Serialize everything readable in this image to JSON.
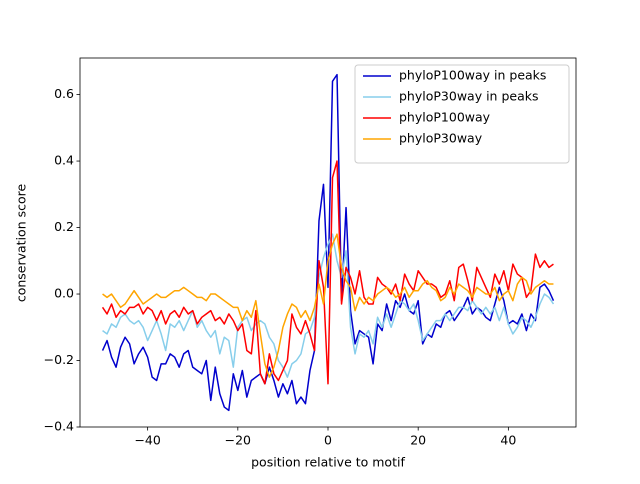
{
  "chart_data": {
    "type": "line",
    "xlabel": "position relative to motif",
    "ylabel": "conservation score",
    "x": [
      -50,
      -49,
      -48,
      -47,
      -46,
      -45,
      -44,
      -43,
      -42,
      -41,
      -40,
      -39,
      -38,
      -37,
      -36,
      -35,
      -34,
      -33,
      -32,
      -31,
      -30,
      -29,
      -28,
      -27,
      -26,
      -25,
      -24,
      -23,
      -22,
      -21,
      -20,
      -19,
      -18,
      -17,
      -16,
      -15,
      -14,
      -13,
      -12,
      -11,
      -10,
      -9,
      -8,
      -7,
      -6,
      -5,
      -4,
      -3,
      -2,
      -1,
      0,
      1,
      2,
      3,
      4,
      5,
      6,
      7,
      8,
      9,
      10,
      11,
      12,
      13,
      14,
      15,
      16,
      17,
      18,
      19,
      20,
      21,
      22,
      23,
      24,
      25,
      26,
      27,
      28,
      29,
      30,
      31,
      32,
      33,
      34,
      35,
      36,
      37,
      38,
      39,
      40,
      41,
      42,
      43,
      44,
      45,
      46,
      47,
      48,
      49,
      50
    ],
    "series": [
      {
        "name": "phyloP100way in peaks",
        "color": "#0000cd",
        "values": [
          -0.17,
          -0.14,
          -0.19,
          -0.22,
          -0.16,
          -0.13,
          -0.15,
          -0.21,
          -0.18,
          -0.16,
          -0.19,
          -0.25,
          -0.26,
          -0.21,
          -0.21,
          -0.18,
          -0.19,
          -0.22,
          -0.18,
          -0.17,
          -0.22,
          -0.23,
          -0.24,
          -0.2,
          -0.32,
          -0.22,
          -0.3,
          -0.34,
          -0.35,
          -0.24,
          -0.29,
          -0.23,
          -0.31,
          -0.26,
          -0.25,
          -0.24,
          -0.27,
          -0.22,
          -0.26,
          -0.31,
          -0.27,
          -0.3,
          -0.26,
          -0.33,
          -0.31,
          -0.33,
          -0.23,
          -0.17,
          0.22,
          0.33,
          0.02,
          0.64,
          0.66,
          -0.02,
          0.26,
          -0.05,
          -0.15,
          -0.11,
          -0.12,
          -0.13,
          -0.21,
          -0.09,
          -0.11,
          -0.03,
          -0.08,
          -0.02,
          -0.04,
          0.0,
          -0.05,
          -0.06,
          -0.02,
          -0.15,
          -0.12,
          -0.13,
          -0.09,
          -0.1,
          -0.06,
          -0.05,
          -0.08,
          -0.06,
          -0.04,
          -0.01,
          -0.06,
          -0.04,
          -0.05,
          -0.07,
          -0.08,
          -0.03,
          0.02,
          -0.02,
          -0.09,
          -0.08,
          -0.09,
          -0.06,
          -0.11,
          -0.06,
          -0.08,
          0.02,
          0.03,
          0.01,
          -0.02
        ]
      },
      {
        "name": "phyloP30way in peaks",
        "color": "#87ceeb",
        "values": [
          -0.11,
          -0.12,
          -0.09,
          -0.1,
          -0.07,
          -0.06,
          -0.08,
          -0.09,
          -0.08,
          -0.1,
          -0.14,
          -0.11,
          -0.08,
          -0.12,
          -0.17,
          -0.09,
          -0.1,
          -0.08,
          -0.11,
          -0.08,
          -0.05,
          -0.1,
          -0.08,
          -0.11,
          -0.13,
          -0.11,
          -0.18,
          -0.13,
          -0.14,
          -0.22,
          -0.1,
          -0.08,
          -0.07,
          -0.11,
          -0.09,
          -0.08,
          -0.09,
          -0.13,
          -0.15,
          -0.2,
          -0.22,
          -0.25,
          -0.21,
          -0.2,
          -0.18,
          -0.12,
          -0.11,
          -0.07,
          0.05,
          0.11,
          0.15,
          0.18,
          0.1,
          0.05,
          0.13,
          -0.1,
          -0.18,
          -0.12,
          -0.13,
          -0.11,
          -0.15,
          -0.07,
          -0.1,
          -0.06,
          -0.1,
          -0.06,
          -0.02,
          -0.03,
          -0.05,
          -0.03,
          -0.08,
          -0.14,
          -0.12,
          -0.1,
          -0.08,
          -0.08,
          -0.06,
          -0.08,
          -0.06,
          -0.04,
          -0.04,
          -0.05,
          -0.02,
          -0.04,
          -0.06,
          -0.04,
          -0.06,
          -0.04,
          -0.08,
          -0.04,
          -0.09,
          -0.12,
          -0.1,
          -0.07,
          -0.08,
          -0.1,
          -0.07,
          -0.03,
          0.0,
          -0.01,
          -0.03
        ]
      },
      {
        "name": "phyloP100way",
        "color": "#ff0000",
        "values": [
          -0.04,
          -0.06,
          -0.03,
          -0.07,
          -0.05,
          -0.06,
          -0.04,
          -0.04,
          -0.03,
          -0.06,
          -0.04,
          -0.05,
          -0.08,
          -0.05,
          -0.09,
          -0.06,
          -0.05,
          -0.07,
          -0.04,
          -0.06,
          -0.05,
          -0.09,
          -0.07,
          -0.06,
          -0.05,
          -0.08,
          -0.07,
          -0.09,
          -0.06,
          -0.08,
          -0.11,
          -0.09,
          -0.17,
          -0.18,
          -0.05,
          -0.24,
          -0.27,
          -0.18,
          -0.24,
          -0.26,
          -0.23,
          -0.2,
          -0.06,
          -0.1,
          -0.12,
          -0.08,
          -0.12,
          -0.17,
          0.1,
          0.02,
          -0.27,
          0.35,
          0.4,
          -0.03,
          0.08,
          0.05,
          0.0,
          0.07,
          -0.01,
          -0.03,
          -0.03,
          0.05,
          0.03,
          0.02,
          0.0,
          0.03,
          -0.02,
          0.06,
          0.03,
          0.01,
          0.07,
          0.05,
          0.03,
          0.03,
          0.02,
          -0.01,
          0.0,
          0.04,
          -0.02,
          0.08,
          0.09,
          0.04,
          -0.02,
          0.08,
          0.05,
          0.02,
          -0.01,
          0.06,
          0.03,
          0.07,
          0.01,
          0.09,
          0.06,
          0.05,
          -0.01,
          0.01,
          0.12,
          0.08,
          0.1,
          0.08,
          0.09
        ]
      },
      {
        "name": "phyloP30way",
        "color": "#ffa500",
        "values": [
          0.0,
          -0.01,
          0.0,
          -0.02,
          -0.04,
          -0.03,
          -0.01,
          0.01,
          -0.01,
          -0.03,
          -0.02,
          -0.01,
          0.0,
          -0.01,
          -0.01,
          0.0,
          0.01,
          0.01,
          0.02,
          0.01,
          0.0,
          -0.01,
          -0.01,
          -0.02,
          0.0,
          0.0,
          -0.01,
          -0.02,
          -0.03,
          -0.04,
          -0.04,
          -0.08,
          -0.05,
          -0.07,
          -0.02,
          -0.12,
          -0.21,
          -0.25,
          -0.22,
          -0.17,
          -0.1,
          -0.06,
          -0.03,
          -0.04,
          -0.07,
          -0.05,
          -0.08,
          -0.04,
          0.03,
          -0.03,
          0.1,
          0.15,
          0.18,
          0.08,
          0.04,
          0.02,
          -0.05,
          -0.01,
          -0.03,
          -0.01,
          -0.02,
          0.0,
          0.01,
          0.02,
          0.01,
          -0.01,
          0.0,
          0.02,
          -0.01,
          0.01,
          0.01,
          0.03,
          0.04,
          0.02,
          0.01,
          -0.02,
          -0.01,
          0.02,
          0.0,
          0.03,
          0.02,
          0.01,
          -0.01,
          0.02,
          0.01,
          0.0,
          0.0,
          0.02,
          -0.02,
          0.0,
          0.01,
          -0.02,
          0.03,
          0.05,
          0.04,
          0.0,
          0.02,
          0.03,
          0.04,
          0.03,
          0.03
        ]
      }
    ],
    "xlim": [
      -55,
      55
    ],
    "xticks": [
      {
        "value": -40,
        "label": "−40"
      },
      {
        "value": -20,
        "label": "−20"
      },
      0,
      20,
      40
    ],
    "ylim": [
      -0.4,
      0.71
    ],
    "yticks": [
      {
        "value": -0.4,
        "label": "−0.4"
      },
      {
        "value": -0.2,
        "label": "−0.2"
      },
      {
        "value": 0,
        "label": "0.0"
      },
      {
        "value": 0.2,
        "label": "0.2"
      },
      {
        "value": 0.4,
        "label": "0.4"
      },
      {
        "value": 0.6,
        "label": "0.6"
      }
    ],
    "legend": "upper right"
  }
}
